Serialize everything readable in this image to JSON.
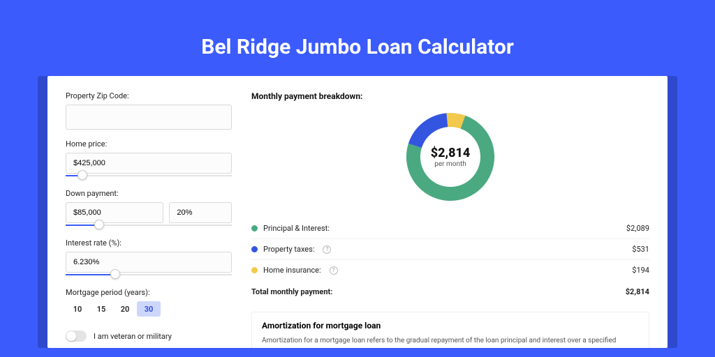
{
  "colors": {
    "page_bg": "#3b5bfd",
    "shadow_bg": "#2f49cc",
    "card_bg": "#ffffff",
    "accent": "#3b5bfd",
    "text": "#222222",
    "muted": "#555555",
    "border": "#d8d8d8"
  },
  "title": "Bel Ridge Jumbo Loan Calculator",
  "form": {
    "zip": {
      "label": "Property Zip Code:",
      "value": ""
    },
    "home_price": {
      "label": "Home price:",
      "value": "$425,000",
      "slider_pct": 10
    },
    "down_payment": {
      "label": "Down payment:",
      "amount": "$85,000",
      "pct": "20%",
      "slider_pct": 20
    },
    "interest_rate": {
      "label": "Interest rate (%):",
      "value": "6.230%",
      "slider_pct": 30
    },
    "mortgage_period": {
      "label": "Mortgage period (years):",
      "options": [
        "10",
        "15",
        "20",
        "30"
      ],
      "selected": "30"
    },
    "veteran": {
      "label": "I am veteran or military",
      "checked": false
    }
  },
  "breakdown": {
    "heading": "Monthly payment breakdown:",
    "donut": {
      "value": "$2,814",
      "sub": "per month",
      "segments": [
        {
          "label": "Principal & Interest:",
          "amount": "$2,089",
          "color": "#4aa980",
          "pct": 74.3,
          "help": false
        },
        {
          "label": "Property taxes:",
          "amount": "$531",
          "color": "#3455e0",
          "pct": 18.8,
          "help": true
        },
        {
          "label": "Home insurance:",
          "amount": "$194",
          "color": "#f2c94c",
          "pct": 6.9,
          "help": true
        }
      ]
    },
    "total": {
      "label": "Total monthly payment:",
      "amount": "$2,814"
    }
  },
  "amortization": {
    "title": "Amortization for mortgage loan",
    "text": "Amortization for a mortgage loan refers to the gradual repayment of the loan principal and interest over a specified"
  }
}
